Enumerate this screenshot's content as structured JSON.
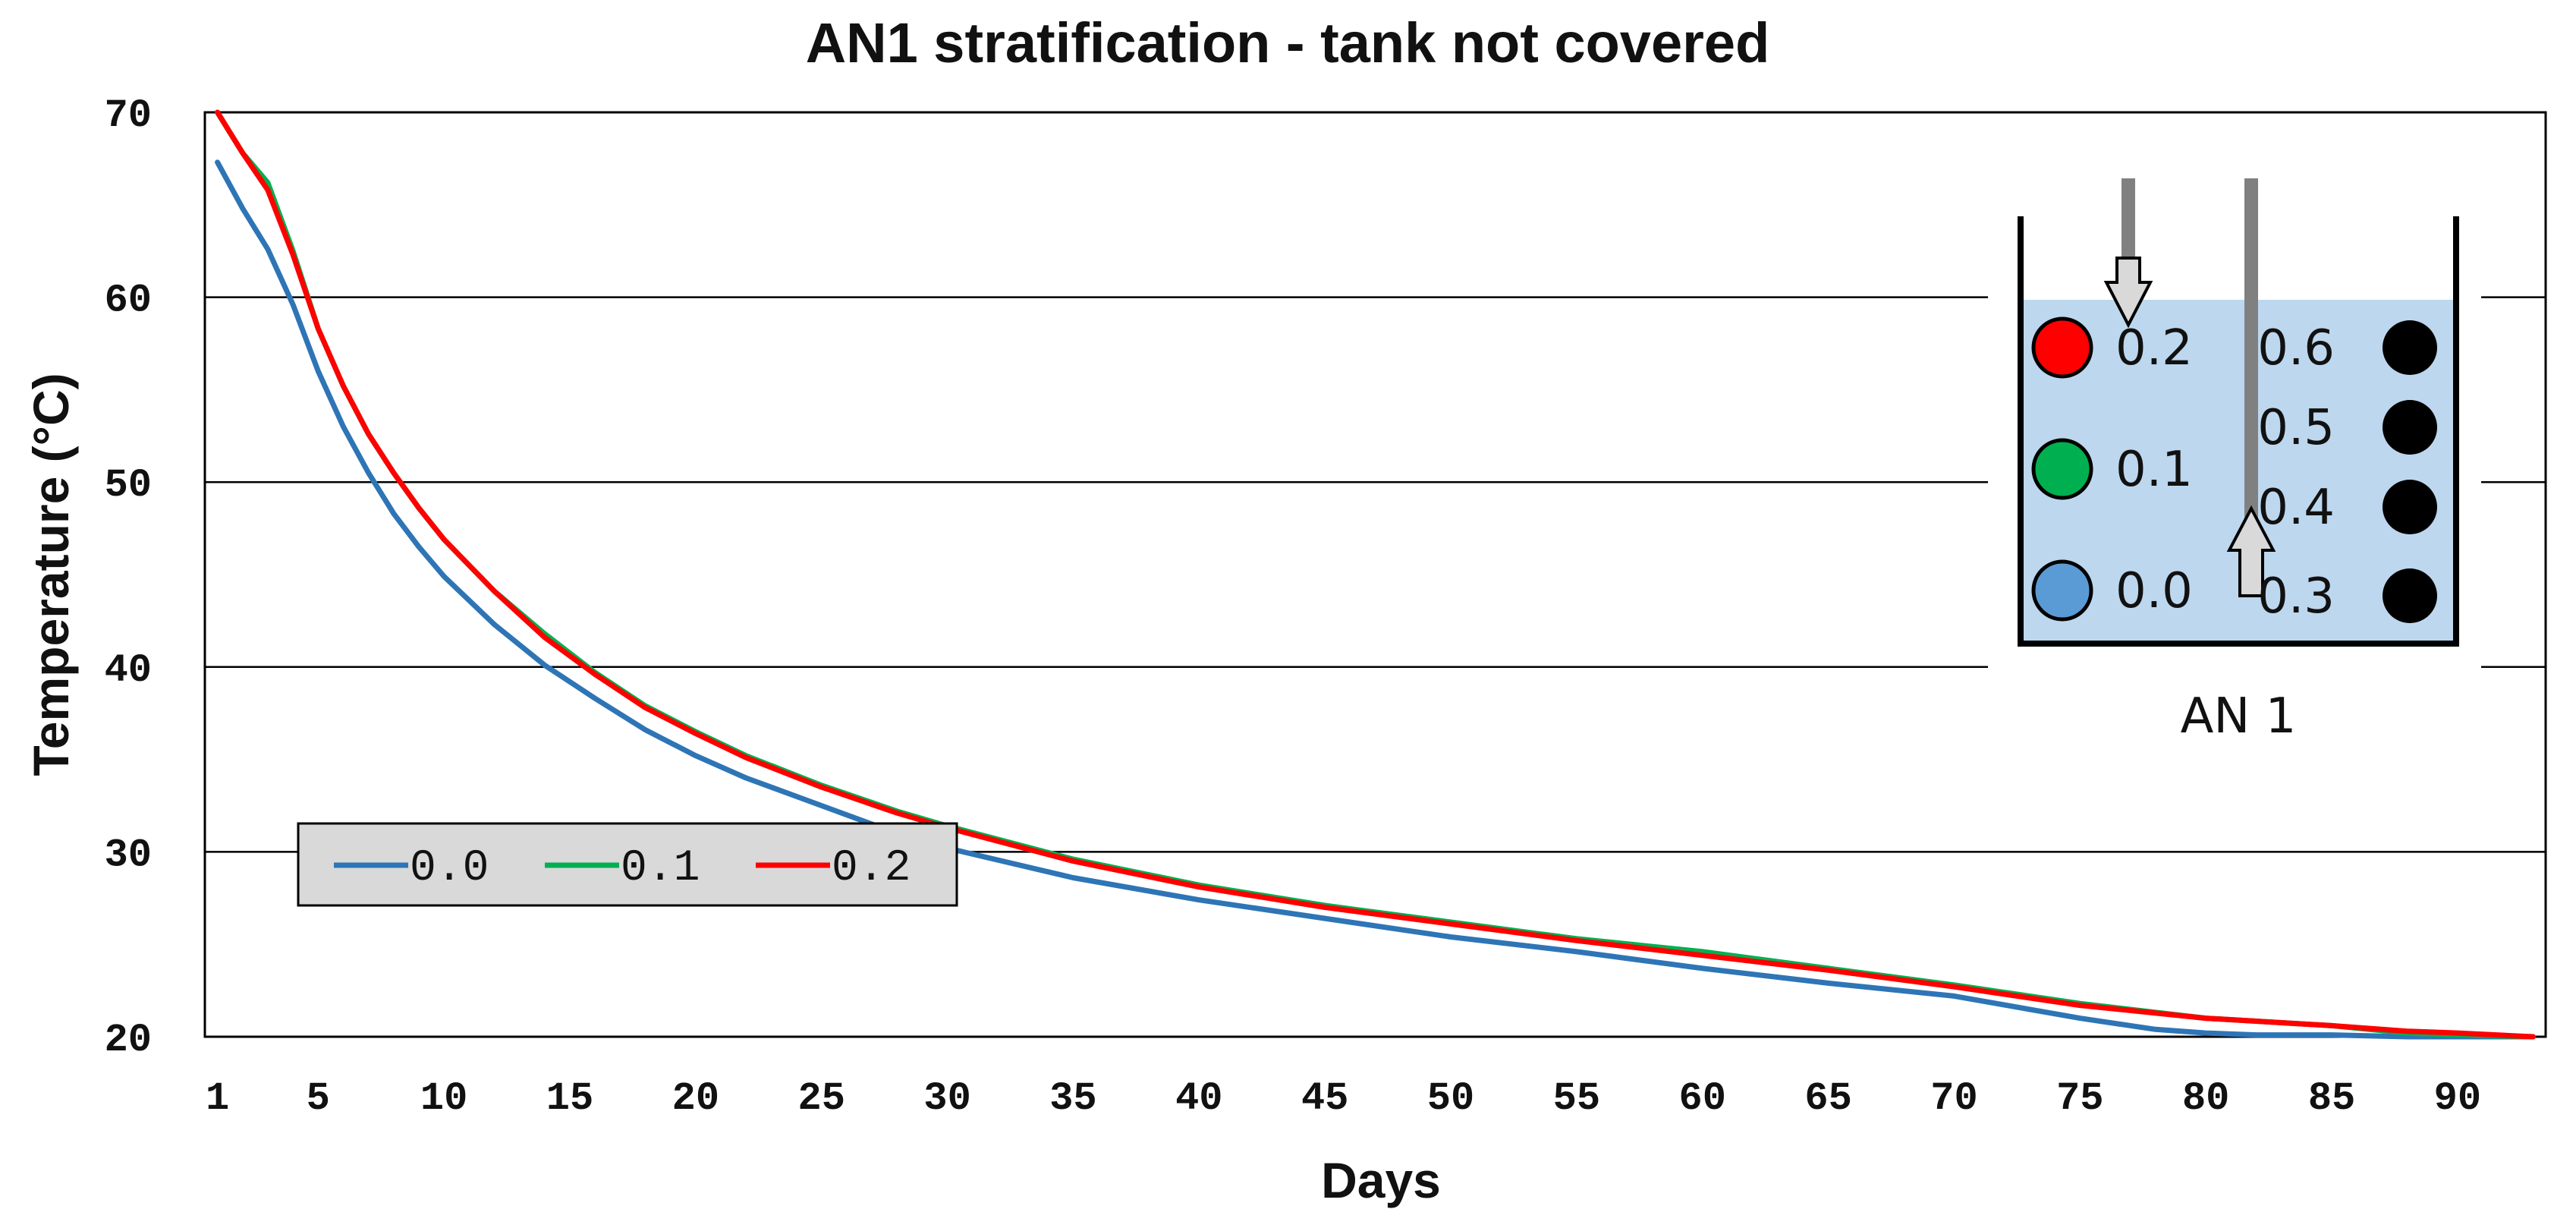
{
  "chart_data": {
    "type": "line",
    "title": "AN1 stratification - tank not covered",
    "xlabel": "Days",
    "ylabel": "Temperature (°C)",
    "xlim": [
      0.5,
      93.5
    ],
    "ylim": [
      20,
      70
    ],
    "x_ticks": [
      1,
      5,
      10,
      15,
      20,
      25,
      30,
      35,
      40,
      45,
      50,
      55,
      60,
      65,
      70,
      75,
      80,
      85,
      90
    ],
    "y_ticks": [
      20,
      30,
      40,
      50,
      60,
      70
    ],
    "grid": "horizontal",
    "legend_position": "lower-left",
    "series": [
      {
        "name": "0.0",
        "color": "#2E75B6",
        "x": [
          1,
          2,
          3,
          4,
          5,
          6,
          7,
          8,
          9,
          10,
          12,
          14,
          16,
          18,
          20,
          22,
          25,
          28,
          30,
          35,
          40,
          45,
          50,
          55,
          60,
          65,
          70,
          75,
          78,
          80,
          82,
          85,
          88,
          90,
          93
        ],
        "y": [
          67.3,
          64.8,
          62.6,
          59.6,
          56.0,
          53.0,
          50.5,
          48.3,
          46.5,
          44.9,
          42.3,
          40.1,
          38.3,
          36.6,
          35.2,
          34.0,
          32.5,
          31.0,
          30.2,
          28.6,
          27.4,
          26.4,
          25.4,
          24.6,
          23.7,
          22.9,
          22.2,
          21.0,
          20.4,
          20.2,
          20.1,
          20.1,
          20.0,
          20.0,
          20.0
        ]
      },
      {
        "name": "0.1",
        "color": "#00B050",
        "x": [
          1,
          2,
          3,
          4,
          5,
          6,
          7,
          8,
          9,
          10,
          12,
          14,
          16,
          18,
          20,
          22,
          25,
          28,
          30,
          35,
          40,
          45,
          50,
          55,
          60,
          65,
          70,
          75,
          80,
          85,
          88,
          90,
          93
        ],
        "y": [
          70.0,
          67.8,
          66.2,
          62.5,
          58.3,
          55.2,
          52.6,
          50.5,
          48.6,
          46.9,
          44.1,
          41.8,
          39.7,
          37.9,
          36.5,
          35.2,
          33.6,
          32.2,
          31.4,
          29.6,
          28.2,
          27.1,
          26.2,
          25.3,
          24.6,
          23.7,
          22.8,
          21.8,
          21.0,
          20.6,
          20.2,
          20.1,
          20.0
        ]
      },
      {
        "name": "0.2",
        "color": "#FF0000",
        "x": [
          1,
          2,
          3,
          4,
          5,
          6,
          7,
          8,
          9,
          10,
          12,
          14,
          16,
          18,
          20,
          22,
          25,
          28,
          30,
          35,
          40,
          45,
          50,
          55,
          60,
          65,
          70,
          75,
          80,
          85,
          88,
          90,
          93
        ],
        "y": [
          70.0,
          67.8,
          65.8,
          62.3,
          58.3,
          55.2,
          52.6,
          50.5,
          48.6,
          46.9,
          44.1,
          41.6,
          39.6,
          37.8,
          36.4,
          35.1,
          33.5,
          32.1,
          31.3,
          29.5,
          28.1,
          27.0,
          26.1,
          25.2,
          24.4,
          23.6,
          22.7,
          21.7,
          21.0,
          20.6,
          20.3,
          20.2,
          20.0
        ]
      }
    ],
    "inset": {
      "caption": "AN 1",
      "sensors_left": [
        {
          "label": "0.2",
          "color": "#FF0000"
        },
        {
          "label": "0.1",
          "color": "#00B050"
        },
        {
          "label": "0.0",
          "color": "#5B9BD5"
        }
      ],
      "sensors_right": [
        {
          "label": "0.6",
          "color": "#000000"
        },
        {
          "label": "0.5",
          "color": "#000000"
        },
        {
          "label": "0.4",
          "color": "#000000"
        },
        {
          "label": "0.3",
          "color": "#000000"
        }
      ],
      "water_color": "#BDD7EE"
    }
  }
}
